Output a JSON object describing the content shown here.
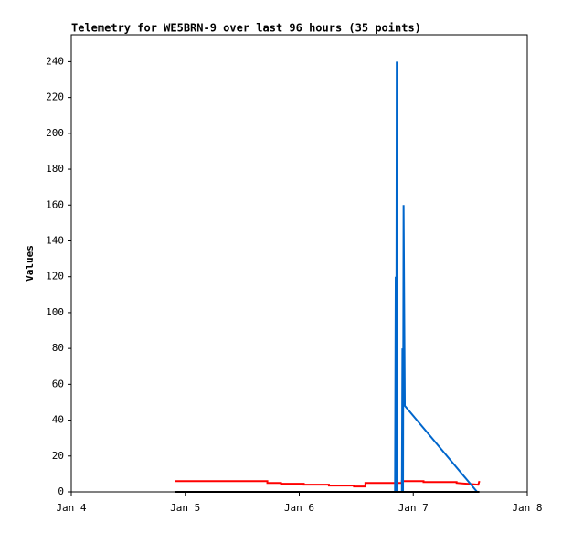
{
  "chart_data": {
    "type": "line",
    "title": "Telemetry for WE5BRN-9 over last 96 hours (35 points)",
    "y_label": "Values",
    "xlim": [
      4,
      8
    ],
    "xticks": [
      {
        "value": 4,
        "label": "Jan 4"
      },
      {
        "value": 5,
        "label": "Jan 5"
      },
      {
        "value": 6,
        "label": "Jan 6"
      },
      {
        "value": 7,
        "label": "Jan 7"
      },
      {
        "value": 8,
        "label": "Jan 8"
      }
    ],
    "ylim": [
      0,
      255
    ],
    "yticks": [
      0,
      20,
      40,
      60,
      80,
      100,
      120,
      140,
      160,
      180,
      200,
      220,
      240
    ],
    "series": [
      {
        "color": "#ff0000",
        "x": [
          4.91,
          5.72,
          5.72,
          5.84,
          5.84,
          6.04,
          6.04,
          6.26,
          6.26,
          6.48,
          6.48,
          6.58,
          6.58,
          6.9,
          6.9,
          7.09,
          7.09,
          7.38,
          7.38,
          7.57,
          7.58
        ],
        "values": [
          6,
          6,
          5,
          5,
          4.5,
          4.5,
          4,
          4,
          3.5,
          3.5,
          3,
          3,
          5,
          5,
          6,
          6,
          5.5,
          5.5,
          5,
          4,
          6
        ]
      },
      {
        "color": "#0066cc",
        "x": [
          6.84,
          6.846,
          6.85,
          6.855,
          6.862,
          6.9,
          6.905,
          6.91,
          6.915,
          6.926,
          7.56
        ],
        "values": [
          0,
          120,
          0,
          240,
          0,
          0,
          80,
          0,
          160,
          48,
          0
        ]
      },
      {
        "color": "#000000",
        "x": [
          4.91,
          7.58
        ],
        "values": [
          0,
          0
        ]
      }
    ]
  }
}
